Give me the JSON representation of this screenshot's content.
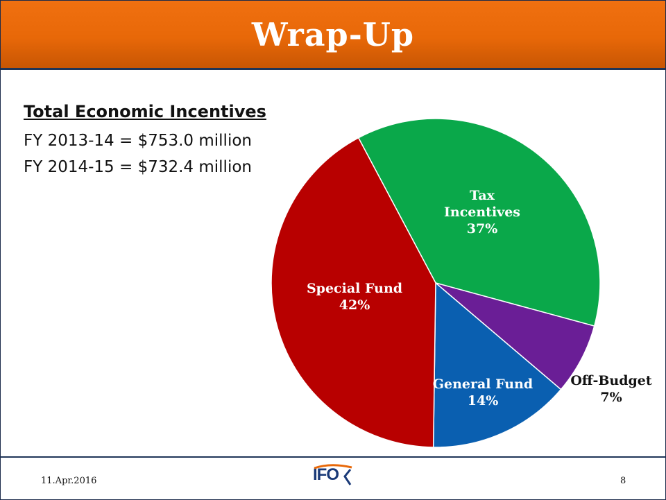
{
  "slide": {
    "title": "Wrap-Up",
    "heading": "Total Economic Incentives",
    "lines": [
      "FY 2013-14 = $753.0 million",
      "FY 2014-15 = $732.4 million"
    ],
    "footer": {
      "date": "11.Apr.2016",
      "page": "8",
      "logo_text": "IFO"
    }
  },
  "chart_data": {
    "type": "pie",
    "slices": [
      {
        "label_lines": [
          "Tax",
          "Incentives"
        ],
        "value": 37,
        "value_label": "37%",
        "color": "#0aa84a",
        "label_color": "#ffffff"
      },
      {
        "label_lines": [
          "Off-Budget"
        ],
        "value": 7,
        "value_label": "7%",
        "color": "#6a1e96",
        "label_color": "#111111"
      },
      {
        "label_lines": [
          "General Fund"
        ],
        "value": 14,
        "value_label": "14%",
        "color": "#0a5fb0",
        "label_color": "#ffffff"
      },
      {
        "label_lines": [
          "Special Fund"
        ],
        "value": 42,
        "value_label": "42%",
        "color": "#b80000",
        "label_color": "#ffffff"
      }
    ],
    "colors": {
      "title_bar": "#e86808",
      "rule": "#1f3558"
    }
  }
}
